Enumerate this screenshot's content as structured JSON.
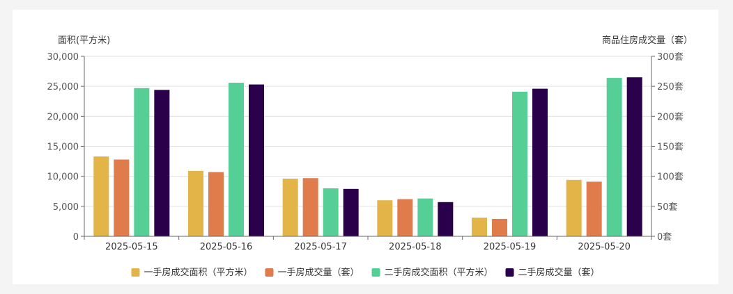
{
  "chart_data": {
    "type": "bar",
    "categories": [
      "2025-05-15",
      "2025-05-16",
      "2025-05-17",
      "2025-05-18",
      "2025-05-19",
      "2025-05-20"
    ],
    "y_left": {
      "label": "面积(平方米)",
      "ylim": [
        0,
        30000
      ],
      "ticks": [
        0,
        5000,
        10000,
        15000,
        20000,
        25000,
        30000
      ],
      "tick_labels": [
        "0",
        "5,000",
        "10,000",
        "15,000",
        "20,000",
        "25,000",
        "30,000"
      ]
    },
    "y_right": {
      "label": "商品住房成交量（套）",
      "ylim": [
        0,
        300
      ],
      "ticks": [
        0,
        50,
        100,
        150,
        200,
        250,
        300
      ],
      "tick_labels": [
        "0套",
        "50套",
        "100套",
        "150套",
        "200套",
        "250套",
        "300套"
      ]
    },
    "series": [
      {
        "name": "一手房成交面积（平方米）",
        "axis": "left",
        "color": "#e3b447",
        "values": [
          13300,
          10900,
          9600,
          6000,
          3100,
          9400
        ]
      },
      {
        "name": "一手房成交量（套）",
        "axis": "right",
        "color": "#e07b4c",
        "values": [
          128,
          107,
          97,
          62,
          29,
          91
        ]
      },
      {
        "name": "二手房成交面积（平方米）",
        "axis": "left",
        "color": "#56cf97",
        "values": [
          24700,
          25600,
          8000,
          6300,
          24100,
          26400
        ]
      },
      {
        "name": "二手房成交量（套）",
        "axis": "right",
        "color": "#2b004a",
        "values": [
          244,
          253,
          79,
          57,
          246,
          265
        ]
      }
    ],
    "grid": true,
    "legend_position": "bottom-center"
  }
}
